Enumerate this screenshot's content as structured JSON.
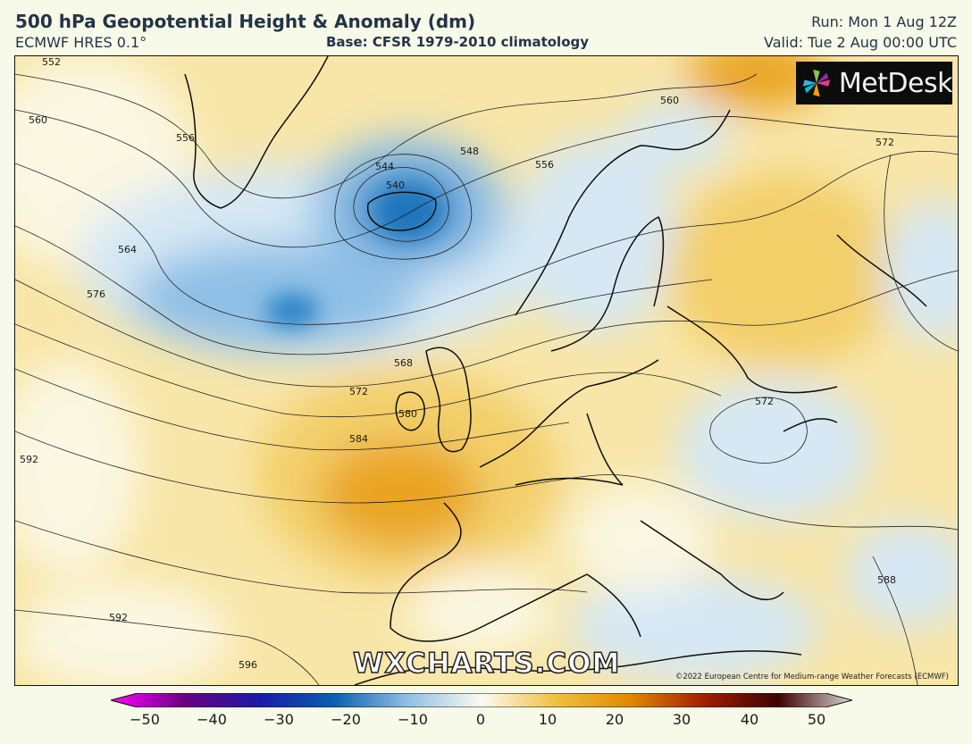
{
  "header": {
    "title": "500 hPa Geopotential Height & Anomaly (dm)",
    "model": "ECMWF HRES 0.1°",
    "base": "Base: CFSR 1979-2010 climatology",
    "run": "Run: Mon 1 Aug 12Z",
    "valid": "Valid: Tue 2 Aug 00:00 UTC"
  },
  "logo": {
    "text": "MetDesk",
    "icon": "metdesk-pinwheel-icon"
  },
  "watermark": "WXCHARTS.COM",
  "copyright": "©2022 European Centre for Medium-range Weather Forecasts (ECMWF)",
  "contour_labels": [
    "552",
    "560",
    "556",
    "564",
    "576",
    "544",
    "540",
    "548",
    "556",
    "560",
    "572",
    "568",
    "572",
    "580",
    "584",
    "592",
    "592",
    "596",
    "572",
    "588"
  ],
  "colorbar": {
    "ticks": [
      "−50",
      "−40",
      "−30",
      "−20",
      "−10",
      "0",
      "10",
      "20",
      "30",
      "40",
      "50"
    ],
    "colors": {
      "low_end": "#ff00ff",
      "neg_40": "#6a0080",
      "neg_30": "#1a1aa8",
      "neg_20": "#0a5fb0",
      "neg_10": "#8fbfe6",
      "zero": "#fbfbf0",
      "pos_10": "#f0c040",
      "pos_20": "#e08a00",
      "pos_30": "#a02000",
      "pos_40": "#400000",
      "high_end": "#d8d8d8"
    }
  },
  "anomaly_colors": {
    "deep_low": "#2f86c8",
    "low": "#8fc0e6",
    "weak_low": "#d6e8f4",
    "neutral": "#fbf7e2",
    "weak_high": "#f8e6a8",
    "high": "#f3cf6a",
    "strong_high": "#eaa424"
  }
}
